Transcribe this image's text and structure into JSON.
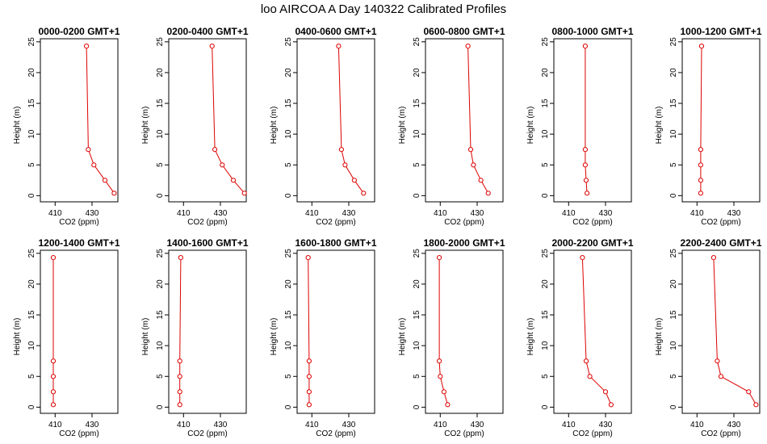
{
  "title": "loo AIRCOA A  Day 140322  Calibrated Profiles",
  "colors": {
    "series": "#dd0000",
    "axis": "#000000",
    "background": "#ffffff"
  },
  "chart_data": [
    {
      "type": "line",
      "title": "0000-0200 GMT+1",
      "xlabel": "CO2 (ppm)",
      "ylabel": "Height (m)",
      "xlim": [
        402,
        444
      ],
      "ylim": [
        -1,
        25.5
      ],
      "x_ticks": [
        410,
        430
      ],
      "y_ticks": [
        0,
        5,
        10,
        15,
        20,
        25
      ],
      "series": [
        {
          "x": [
            442,
            437,
            431,
            428,
            427
          ],
          "y": [
            0.4,
            2.5,
            5,
            7.5,
            24.3
          ]
        }
      ]
    },
    {
      "type": "line",
      "title": "0200-0400 GMT+1",
      "xlabel": "CO2 (ppm)",
      "ylabel": "Height (m)",
      "xlim": [
        402,
        444
      ],
      "ylim": [
        -1,
        25.5
      ],
      "x_ticks": [
        410,
        430
      ],
      "y_ticks": [
        0,
        5,
        10,
        15,
        20,
        25
      ],
      "series": [
        {
          "x": [
            443,
            437,
            431,
            427,
            425.5
          ],
          "y": [
            0.4,
            2.5,
            5,
            7.5,
            24.3
          ]
        }
      ]
    },
    {
      "type": "line",
      "title": "0400-0600 GMT+1",
      "xlabel": "CO2 (ppm)",
      "ylabel": "Height (m)",
      "xlim": [
        402,
        444
      ],
      "ylim": [
        -1,
        25.5
      ],
      "x_ticks": [
        410,
        430
      ],
      "y_ticks": [
        0,
        5,
        10,
        15,
        20,
        25
      ],
      "series": [
        {
          "x": [
            438,
            433,
            428,
            426,
            424.5
          ],
          "y": [
            0.4,
            2.5,
            5,
            7.5,
            24.3
          ]
        }
      ]
    },
    {
      "type": "line",
      "title": "0600-0800 GMT+1",
      "xlabel": "CO2 (ppm)",
      "ylabel": "Height (m)",
      "xlim": [
        402,
        444
      ],
      "ylim": [
        -1,
        25.5
      ],
      "x_ticks": [
        410,
        430
      ],
      "y_ticks": [
        0,
        5,
        10,
        15,
        20,
        25
      ],
      "series": [
        {
          "x": [
            436,
            432,
            428,
            426.5,
            425
          ],
          "y": [
            0.4,
            2.5,
            5,
            7.5,
            24.3
          ]
        }
      ]
    },
    {
      "type": "line",
      "title": "0800-1000 GMT+1",
      "xlabel": "CO2 (ppm)",
      "ylabel": "Height (m)",
      "xlim": [
        402,
        444
      ],
      "ylim": [
        -1,
        25.5
      ],
      "x_ticks": [
        410,
        430
      ],
      "y_ticks": [
        0,
        5,
        10,
        15,
        20,
        25
      ],
      "series": [
        {
          "x": [
            420,
            419.5,
            419,
            419,
            419
          ],
          "y": [
            0.4,
            2.5,
            5,
            7.5,
            24.3
          ]
        }
      ]
    },
    {
      "type": "line",
      "title": "1000-1200 GMT+1",
      "xlabel": "CO2 (ppm)",
      "ylabel": "Height (m)",
      "xlim": [
        402,
        444
      ],
      "ylim": [
        -1,
        25.5
      ],
      "x_ticks": [
        410,
        430
      ],
      "y_ticks": [
        0,
        5,
        10,
        15,
        20,
        25
      ],
      "series": [
        {
          "x": [
            412,
            412,
            412,
            412,
            412.5
          ],
          "y": [
            0.4,
            2.5,
            5,
            7.5,
            24.3
          ]
        }
      ]
    },
    {
      "type": "line",
      "title": "1200-1400 GMT+1",
      "xlabel": "CO2 (ppm)",
      "ylabel": "Height (m)",
      "xlim": [
        402,
        444
      ],
      "ylim": [
        -1,
        25.5
      ],
      "x_ticks": [
        410,
        430
      ],
      "y_ticks": [
        0,
        5,
        10,
        15,
        20,
        25
      ],
      "series": [
        {
          "x": [
            409,
            409,
            409,
            409,
            409
          ],
          "y": [
            0.4,
            2.5,
            5,
            7.5,
            24.3
          ]
        }
      ]
    },
    {
      "type": "line",
      "title": "1400-1600 GMT+1",
      "xlabel": "CO2 (ppm)",
      "ylabel": "Height (m)",
      "xlim": [
        402,
        444
      ],
      "ylim": [
        -1,
        25.5
      ],
      "x_ticks": [
        410,
        430
      ],
      "y_ticks": [
        0,
        5,
        10,
        15,
        20,
        25
      ],
      "series": [
        {
          "x": [
            408,
            408,
            408,
            408,
            408.5
          ],
          "y": [
            0.4,
            2.5,
            5,
            7.5,
            24.3
          ]
        }
      ]
    },
    {
      "type": "line",
      "title": "1600-1800 GMT+1",
      "xlabel": "CO2 (ppm)",
      "ylabel": "Height (m)",
      "xlim": [
        402,
        444
      ],
      "ylim": [
        -1,
        25.5
      ],
      "x_ticks": [
        410,
        430
      ],
      "y_ticks": [
        0,
        5,
        10,
        15,
        20,
        25
      ],
      "series": [
        {
          "x": [
            408.5,
            408.5,
            408.5,
            408.5,
            408
          ],
          "y": [
            0.4,
            2.5,
            5,
            7.5,
            24.3
          ]
        }
      ]
    },
    {
      "type": "line",
      "title": "1800-2000 GMT+1",
      "xlabel": "CO2 (ppm)",
      "ylabel": "Height (m)",
      "xlim": [
        402,
        444
      ],
      "ylim": [
        -1,
        25.5
      ],
      "x_ticks": [
        410,
        430
      ],
      "y_ticks": [
        0,
        5,
        10,
        15,
        20,
        25
      ],
      "series": [
        {
          "x": [
            414,
            412,
            410,
            409.5,
            409.5
          ],
          "y": [
            0.4,
            2.5,
            5,
            7.5,
            24.3
          ]
        }
      ]
    },
    {
      "type": "line",
      "title": "2000-2200 GMT+1",
      "xlabel": "CO2 (ppm)",
      "ylabel": "Height (m)",
      "xlim": [
        402,
        444
      ],
      "ylim": [
        -1,
        25.5
      ],
      "x_ticks": [
        410,
        430
      ],
      "y_ticks": [
        0,
        5,
        10,
        15,
        20,
        25
      ],
      "series": [
        {
          "x": [
            433,
            430,
            421.5,
            419.5,
            417.5
          ],
          "y": [
            0.4,
            2.5,
            5,
            7.5,
            24.3
          ]
        }
      ]
    },
    {
      "type": "line",
      "title": "2200-2400 GMT+1",
      "xlabel": "CO2 (ppm)",
      "ylabel": "Height (m)",
      "xlim": [
        402,
        444
      ],
      "ylim": [
        -1,
        25.5
      ],
      "x_ticks": [
        410,
        430
      ],
      "y_ticks": [
        0,
        5,
        10,
        15,
        20,
        25
      ],
      "series": [
        {
          "x": [
            442,
            438,
            423,
            421,
            419
          ],
          "y": [
            0.4,
            2.5,
            5,
            7.5,
            24.3
          ]
        }
      ]
    }
  ]
}
